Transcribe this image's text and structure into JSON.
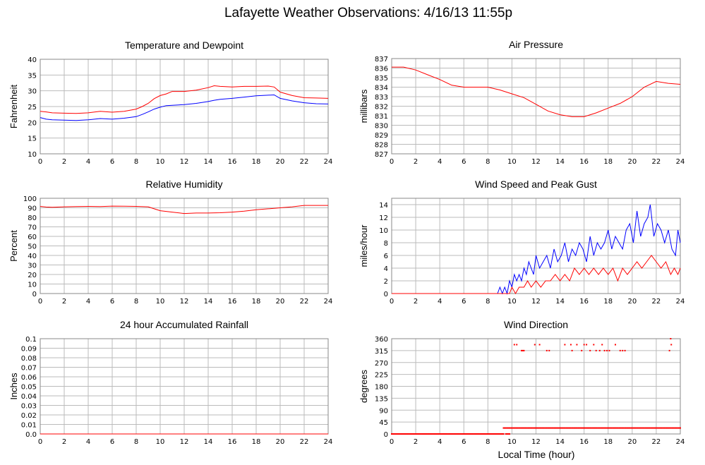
{
  "page": {
    "title": "Lafayette Weather Observations: 4/16/13 11:55p",
    "xlabel": "Local Time (hour)"
  },
  "colors": {
    "red": "#ff0000",
    "blue": "#0000ff",
    "grid": "#bbbbbb",
    "frame": "#888888"
  },
  "chart_data": [
    {
      "id": "temp",
      "type": "line",
      "title": "Temperature and Dewpoint",
      "ylabel": "Fahrenheit",
      "xlim": [
        0,
        24
      ],
      "ylim": [
        10,
        40
      ],
      "xticks": [
        0,
        2,
        4,
        6,
        8,
        10,
        12,
        14,
        16,
        18,
        20,
        22,
        24
      ],
      "xtick_labels": [
        "0",
        "2",
        "4",
        "6",
        "8",
        "10",
        "12",
        "14",
        "16",
        "18",
        "20",
        "22",
        "24"
      ],
      "yticks": [
        10,
        15,
        20,
        25,
        30,
        35,
        40
      ],
      "ytick_labels": [
        "10",
        "15",
        "20",
        "25",
        "30",
        "35",
        "40"
      ],
      "grid": true,
      "series": [
        {
          "color": "#ff0000",
          "x": [
            0,
            0.5,
            1,
            2,
            3,
            4,
            5,
            6,
            7,
            8,
            8.5,
            9,
            9.5,
            10,
            10.5,
            11,
            12,
            13,
            14,
            14.5,
            15,
            16,
            17,
            18,
            19,
            19.5,
            20,
            21,
            22,
            23,
            24
          ],
          "y": [
            23.5,
            23.3,
            23.0,
            22.9,
            22.8,
            23.0,
            23.5,
            23.2,
            23.5,
            24.2,
            25,
            26,
            27.5,
            28.5,
            29,
            29.8,
            29.8,
            30.2,
            31.0,
            31.6,
            31.4,
            31.2,
            31.4,
            31.4,
            31.5,
            31.2,
            29.6,
            28.5,
            27.8,
            27.7,
            27.6
          ]
        },
        {
          "color": "#0000ff",
          "x": [
            0,
            0.5,
            1,
            2,
            3,
            4,
            5,
            6,
            7,
            8,
            8.5,
            9,
            9.5,
            10,
            10.5,
            11,
            12,
            13,
            14,
            14.5,
            15,
            16,
            17,
            18,
            19,
            19.5,
            20,
            21,
            22,
            23,
            24
          ],
          "y": [
            21.5,
            21.0,
            20.8,
            20.7,
            20.6,
            20.8,
            21.2,
            21.0,
            21.3,
            21.8,
            22.5,
            23.3,
            24.2,
            24.8,
            25.3,
            25.4,
            25.6,
            26.0,
            26.6,
            27.0,
            27.3,
            27.6,
            28.0,
            28.4,
            28.6,
            28.7,
            27.6,
            26.8,
            26.2,
            25.9,
            25.8
          ]
        }
      ]
    },
    {
      "id": "pressure",
      "type": "line",
      "title": "Air Pressure",
      "ylabel": "millibars",
      "xlim": [
        0,
        24
      ],
      "ylim": [
        827,
        837
      ],
      "xticks": [
        0,
        2,
        4,
        6,
        8,
        10,
        12,
        14,
        16,
        18,
        20,
        22,
        24
      ],
      "xtick_labels": [
        "0",
        "2",
        "4",
        "6",
        "8",
        "10",
        "12",
        "14",
        "16",
        "18",
        "20",
        "22",
        "24"
      ],
      "yticks": [
        827,
        828,
        829,
        830,
        831,
        832,
        833,
        834,
        835,
        836,
        837
      ],
      "ytick_labels": [
        "827",
        "828",
        "829",
        "830",
        "831",
        "832",
        "833",
        "834",
        "835",
        "836",
        "837"
      ],
      "grid": true,
      "series": [
        {
          "color": "#ff0000",
          "x": [
            0,
            1,
            2,
            3,
            4,
            5,
            6,
            7,
            8,
            9,
            10,
            11,
            12,
            13,
            14,
            15,
            16,
            17,
            18,
            19,
            20,
            21,
            22,
            23,
            24
          ],
          "y": [
            836.1,
            836.1,
            835.8,
            835.3,
            834.8,
            834.2,
            834.0,
            834.0,
            834.0,
            833.7,
            833.3,
            832.9,
            832.2,
            831.5,
            831.1,
            830.9,
            830.9,
            831.3,
            831.8,
            832.3,
            833.0,
            834.0,
            834.6,
            834.4,
            834.3
          ]
        }
      ]
    },
    {
      "id": "humidity",
      "type": "line",
      "title": "Relative Humidity",
      "ylabel": "Percent",
      "xlim": [
        0,
        24
      ],
      "ylim": [
        0,
        100
      ],
      "xticks": [
        0,
        2,
        4,
        6,
        8,
        10,
        12,
        14,
        16,
        18,
        20,
        22,
        24
      ],
      "xtick_labels": [
        "0",
        "2",
        "4",
        "6",
        "8",
        "10",
        "12",
        "14",
        "16",
        "18",
        "20",
        "22",
        "24"
      ],
      "yticks": [
        0,
        10,
        20,
        30,
        40,
        50,
        60,
        70,
        80,
        90,
        100
      ],
      "ytick_labels": [
        "0",
        "10",
        "20",
        "30",
        "40",
        "50",
        "60",
        "70",
        "80",
        "90",
        "100"
      ],
      "grid": true,
      "series": [
        {
          "color": "#ff0000",
          "x": [
            0,
            0.5,
            1,
            2,
            3,
            4,
            5,
            6,
            7,
            8,
            9,
            9.5,
            10,
            11,
            12,
            13,
            14,
            15,
            16,
            17,
            18,
            19,
            20,
            21,
            22,
            23,
            24
          ],
          "y": [
            91.5,
            90.8,
            90.5,
            91,
            91.3,
            91.5,
            91.3,
            91.8,
            91.6,
            91.5,
            91,
            89,
            87,
            85.5,
            84,
            84.5,
            84.5,
            84.8,
            85.5,
            86.5,
            88,
            89,
            90,
            91,
            92.5,
            92.5,
            92.5
          ]
        }
      ]
    },
    {
      "id": "wind",
      "type": "line",
      "title": "Wind Speed and Peak Gust",
      "ylabel": "miles/hour",
      "xlim": [
        0,
        24
      ],
      "ylim": [
        0,
        15
      ],
      "xticks": [
        0,
        2,
        4,
        6,
        8,
        10,
        12,
        14,
        16,
        18,
        20,
        22,
        24
      ],
      "xtick_labels": [
        "0",
        "2",
        "4",
        "6",
        "8",
        "10",
        "12",
        "14",
        "16",
        "18",
        "20",
        "22",
        "24"
      ],
      "yticks": [
        0,
        2,
        4,
        6,
        8,
        10,
        12,
        14
      ],
      "ytick_labels": [
        "0",
        "2",
        "4",
        "6",
        "8",
        "10",
        "12",
        "14"
      ],
      "grid": true,
      "series": [
        {
          "color": "#0000ff",
          "x": [
            0,
            8.8,
            9.0,
            9.2,
            9.4,
            9.6,
            9.8,
            10.0,
            10.2,
            10.4,
            10.6,
            10.8,
            11.0,
            11.2,
            11.4,
            11.6,
            11.8,
            12.0,
            12.3,
            12.6,
            12.9,
            13.2,
            13.5,
            13.8,
            14.1,
            14.4,
            14.7,
            15.0,
            15.3,
            15.6,
            15.9,
            16.2,
            16.5,
            16.8,
            17.1,
            17.4,
            17.7,
            18.0,
            18.3,
            18.6,
            18.9,
            19.2,
            19.5,
            19.8,
            20.1,
            20.4,
            20.7,
            21.0,
            21.3,
            21.5,
            21.8,
            22.1,
            22.4,
            22.7,
            23.0,
            23.3,
            23.6,
            23.8,
            24.0
          ],
          "y": [
            0,
            0,
            1,
            0,
            1,
            0,
            2,
            1,
            3,
            2,
            3,
            2,
            4,
            3,
            5,
            4,
            3,
            6,
            4,
            5,
            6,
            4,
            7,
            5,
            6,
            8,
            5,
            7,
            6,
            8,
            7,
            5,
            9,
            6,
            8,
            7,
            8,
            10,
            7,
            9,
            8,
            7,
            10,
            11,
            8,
            13,
            9,
            11,
            12,
            14,
            9,
            11,
            10,
            8,
            10,
            7,
            6,
            10,
            8
          ]
        },
        {
          "color": "#ff0000",
          "x": [
            0,
            9.8,
            10.0,
            10.3,
            10.6,
            11.0,
            11.3,
            11.6,
            12.0,
            12.4,
            12.8,
            13.2,
            13.6,
            14.0,
            14.4,
            14.8,
            15.2,
            15.6,
            16.0,
            16.4,
            16.8,
            17.2,
            17.6,
            18.0,
            18.4,
            18.8,
            19.2,
            19.6,
            20.0,
            20.4,
            20.8,
            21.2,
            21.6,
            22.0,
            22.4,
            22.8,
            23.2,
            23.5,
            23.8,
            24.0
          ],
          "y": [
            0,
            0,
            1,
            0,
            1,
            1,
            2,
            1,
            2,
            1,
            2,
            2,
            3,
            2,
            3,
            2,
            4,
            3,
            4,
            3,
            4,
            3,
            4,
            3,
            4,
            2,
            4,
            3,
            4,
            5,
            4,
            5,
            6,
            5,
            4,
            5,
            3,
            4,
            3,
            4
          ]
        }
      ]
    },
    {
      "id": "rain",
      "type": "line",
      "title": "24 hour Accumulated Rainfall",
      "ylabel": "Inches",
      "xlim": [
        0,
        24
      ],
      "ylim": [
        0,
        0.1
      ],
      "xticks": [
        0,
        2,
        4,
        6,
        8,
        10,
        12,
        14,
        16,
        18,
        20,
        22,
        24
      ],
      "xtick_labels": [
        "0",
        "2",
        "4",
        "6",
        "8",
        "10",
        "12",
        "14",
        "16",
        "18",
        "20",
        "22",
        "24"
      ],
      "yticks": [
        0,
        0.01,
        0.02,
        0.03,
        0.04,
        0.05,
        0.06,
        0.07,
        0.08,
        0.09,
        0.1
      ],
      "ytick_labels": [
        "0.0",
        "0.01",
        "0.02",
        "0.03",
        "0.04",
        "0.05",
        "0.06",
        "0.07",
        "0.08",
        "0.09",
        "0.1"
      ],
      "grid": true,
      "series": [
        {
          "color": "#ff0000",
          "x": [
            0,
            24
          ],
          "y": [
            0,
            0
          ]
        }
      ]
    },
    {
      "id": "winddir",
      "type": "scatter",
      "title": "Wind Direction",
      "ylabel": "degrees",
      "xlim": [
        0,
        24
      ],
      "ylim": [
        0,
        360
      ],
      "xticks": [
        0,
        2,
        4,
        6,
        8,
        10,
        12,
        14,
        16,
        18,
        20,
        22,
        24
      ],
      "xtick_labels": [
        "0",
        "2",
        "4",
        "6",
        "8",
        "10",
        "12",
        "14",
        "16",
        "18",
        "20",
        "22",
        "24"
      ],
      "yticks": [
        0,
        45,
        90,
        135,
        180,
        225,
        270,
        315,
        360
      ],
      "ytick_labels": [
        "0",
        "45",
        "90",
        "135",
        "180",
        "225",
        "270",
        "315",
        "360"
      ],
      "grid": true,
      "series": [
        {
          "color": "#ff0000",
          "points": [
            {
              "x_range": [
                0,
                9.3
              ],
              "y": 0
            },
            {
              "x_range": [
                9.5,
                9.8
              ],
              "y": 0
            },
            {
              "x_range": [
                9.3,
                24
              ],
              "y": 22.5
            }
          ],
          "x": [
            10.2,
            10.4,
            10.8,
            10.9,
            11.0,
            11.9,
            12.3,
            12.9,
            13.1,
            14.4,
            14.9,
            15.0,
            15.4,
            15.8,
            16.0,
            16.2,
            16.5,
            16.8,
            17.0,
            17.3,
            17.5,
            17.7,
            17.9,
            18.1,
            18.6,
            19.0,
            19.2,
            19.4,
            23.1,
            23.2,
            23.25
          ],
          "y": [
            337.5,
            337.5,
            315,
            315,
            315,
            337.5,
            337.5,
            315,
            315,
            337.5,
            337.5,
            315,
            337.5,
            315,
            337.5,
            337.5,
            315,
            337.5,
            315,
            315,
            337.5,
            315,
            315,
            315,
            337.5,
            315,
            315,
            315,
            315,
            360,
            337.5
          ]
        }
      ]
    }
  ]
}
